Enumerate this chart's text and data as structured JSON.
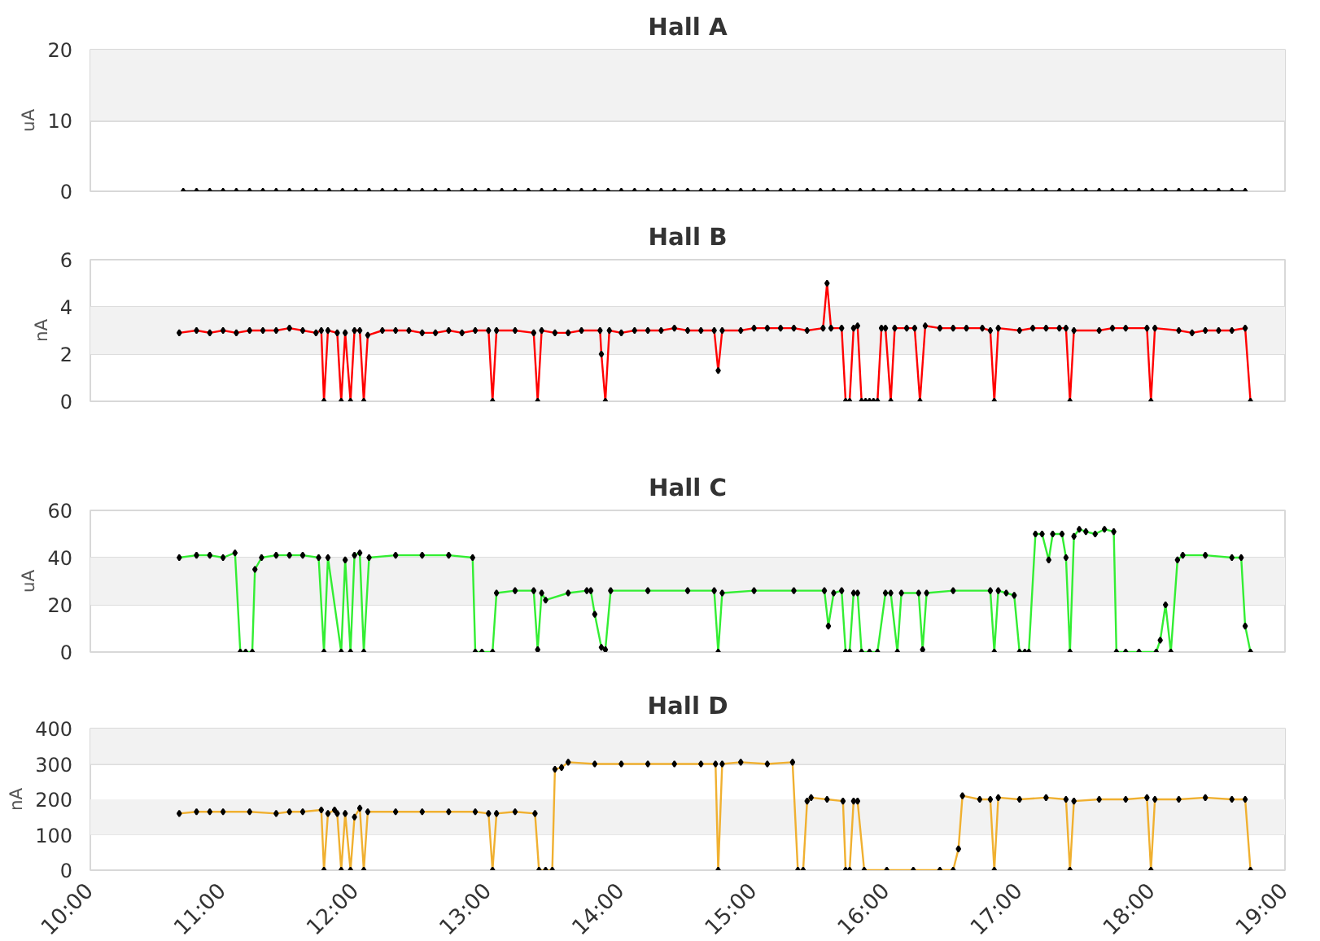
{
  "chart_data": [
    {
      "type": "line",
      "title": "Hall A",
      "ylabel": "uA",
      "xlim": [
        10,
        19
      ],
      "ylim": [
        0,
        20
      ],
      "yticks": [
        0,
        10,
        20
      ],
      "grid": "y",
      "tick_labels": "y",
      "marker": "diamond",
      "bands": [
        {
          "axis": "y",
          "from": 10,
          "to": 20,
          "color": "#f2f2f2"
        }
      ],
      "series": [
        {
          "color": "#000000",
          "x": [
            10.7,
            10.8,
            10.9,
            11.0,
            11.1,
            11.2,
            11.3,
            11.4,
            11.5,
            11.6,
            11.7,
            11.8,
            11.9,
            12.0,
            12.1,
            12.2,
            12.3,
            12.4,
            12.5,
            12.6,
            12.7,
            12.8,
            12.9,
            13.0,
            13.1,
            13.2,
            13.3,
            13.4,
            13.5,
            13.6,
            13.7,
            13.8,
            13.9,
            14.0,
            14.1,
            14.2,
            14.3,
            14.4,
            14.5,
            14.6,
            14.7,
            14.8,
            14.9,
            15.0,
            15.1,
            15.2,
            15.3,
            15.4,
            15.5,
            15.6,
            15.7,
            15.8,
            15.9,
            16.0,
            16.1,
            16.2,
            16.3,
            16.4,
            16.5,
            16.6,
            16.7,
            16.8,
            16.9,
            17.0,
            17.1,
            17.2,
            17.3,
            17.4,
            17.5,
            17.6,
            17.7,
            17.8,
            17.9,
            18.0,
            18.1,
            18.2,
            18.3,
            18.4,
            18.5,
            18.6,
            18.7
          ],
          "values": [
            0,
            0,
            0,
            0,
            0,
            0,
            0,
            0,
            0,
            0,
            0,
            0,
            0,
            0,
            0,
            0,
            0,
            0,
            0,
            0,
            0,
            0,
            0,
            0,
            0,
            0,
            0,
            0,
            0,
            0,
            0,
            0,
            0,
            0,
            0,
            0,
            0,
            0,
            0,
            0,
            0,
            0,
            0,
            0,
            0,
            0,
            0,
            0,
            0,
            0,
            0,
            0,
            0,
            0,
            0,
            0,
            0,
            0,
            0,
            0,
            0,
            0,
            0,
            0,
            0,
            0,
            0,
            0,
            0,
            0,
            0,
            0,
            0,
            0,
            0,
            0,
            0,
            0,
            0,
            0,
            0
          ]
        }
      ]
    },
    {
      "type": "line",
      "title": "Hall B",
      "ylabel": "nA",
      "xlim": [
        10,
        19
      ],
      "ylim": [
        0,
        6
      ],
      "yticks": [
        0,
        2,
        4,
        6
      ],
      "grid": "y",
      "tick_labels": "y",
      "marker": "diamond",
      "bands": [
        {
          "axis": "y",
          "from": 2,
          "to": 4,
          "color": "#f2f2f2"
        }
      ],
      "series": [
        {
          "color": "#ff0000",
          "x": [
            10.67,
            10.8,
            10.9,
            11.0,
            11.1,
            11.2,
            11.3,
            11.4,
            11.5,
            11.6,
            11.7,
            11.74,
            11.76,
            11.79,
            11.86,
            11.89,
            11.92,
            11.96,
            11.99,
            12.03,
            12.06,
            12.09,
            12.2,
            12.3,
            12.4,
            12.5,
            12.6,
            12.7,
            12.8,
            12.9,
            13.0,
            13.03,
            13.06,
            13.2,
            13.34,
            13.37,
            13.4,
            13.5,
            13.6,
            13.7,
            13.84,
            13.85,
            13.88,
            13.91,
            14.0,
            14.1,
            14.2,
            14.3,
            14.4,
            14.5,
            14.6,
            14.7,
            14.73,
            14.76,
            14.9,
            15.0,
            15.1,
            15.2,
            15.3,
            15.4,
            15.52,
            15.55,
            15.58,
            15.66,
            15.69,
            15.72,
            15.75,
            15.78,
            15.81,
            15.84,
            15.87,
            15.9,
            15.93,
            15.96,
            15.99,
            16.03,
            16.06,
            16.15,
            16.21,
            16.25,
            16.29,
            16.4,
            16.5,
            16.6,
            16.72,
            16.78,
            16.81,
            16.84,
            17.0,
            17.1,
            17.2,
            17.3,
            17.35,
            17.38,
            17.41,
            17.6,
            17.7,
            17.8,
            17.96,
            17.99,
            18.02,
            18.2,
            18.3,
            18.4,
            18.5,
            18.6,
            18.7,
            18.74
          ],
          "values": [
            2.9,
            3.0,
            2.9,
            3.0,
            2.9,
            3.0,
            3.0,
            3.0,
            3.1,
            3.0,
            2.9,
            3.0,
            0,
            3.0,
            2.9,
            0,
            2.9,
            0,
            3.0,
            3.0,
            0,
            2.8,
            3.0,
            3.0,
            3.0,
            2.9,
            2.9,
            3.0,
            2.9,
            3.0,
            3.0,
            0,
            3.0,
            3.0,
            2.9,
            0,
            3.0,
            2.9,
            2.9,
            3.0,
            3.0,
            2.0,
            0,
            3.0,
            2.9,
            3.0,
            3.0,
            3.0,
            3.1,
            3.0,
            3.0,
            3.0,
            1.3,
            3.0,
            3.0,
            3.1,
            3.1,
            3.1,
            3.1,
            3.0,
            3.1,
            5.0,
            3.1,
            3.1,
            0,
            0,
            3.1,
            3.2,
            0,
            0,
            0,
            0,
            0,
            3.1,
            3.1,
            0,
            3.1,
            3.1,
            3.1,
            0,
            3.2,
            3.1,
            3.1,
            3.1,
            3.1,
            3.0,
            0,
            3.1,
            3.0,
            3.1,
            3.1,
            3.1,
            3.1,
            0,
            3.0,
            3.0,
            3.1,
            3.1,
            3.1,
            0,
            3.1,
            3.0,
            2.9,
            3.0,
            3.0,
            3.0,
            3.1,
            0
          ]
        }
      ]
    },
    {
      "type": "line",
      "title": "Hall C",
      "ylabel": "uA",
      "xlim": [
        10,
        19
      ],
      "ylim": [
        0,
        60
      ],
      "yticks": [
        0,
        20,
        40,
        60
      ],
      "grid": "y",
      "tick_labels": "y",
      "marker": "diamond",
      "bands": [
        {
          "axis": "y",
          "from": 20,
          "to": 40,
          "color": "#f2f2f2"
        }
      ],
      "series": [
        {
          "color": "#33ee33",
          "x": [
            10.67,
            10.8,
            10.9,
            11.0,
            11.09,
            11.13,
            11.17,
            11.22,
            11.24,
            11.29,
            11.4,
            11.5,
            11.6,
            11.72,
            11.76,
            11.79,
            11.89,
            11.92,
            11.96,
            11.99,
            12.03,
            12.06,
            12.1,
            12.3,
            12.5,
            12.7,
            12.88,
            12.9,
            12.95,
            13.03,
            13.06,
            13.2,
            13.34,
            13.37,
            13.4,
            13.43,
            13.6,
            13.74,
            13.77,
            13.8,
            13.85,
            13.88,
            13.92,
            14.2,
            14.5,
            14.7,
            14.73,
            14.76,
            15.0,
            15.3,
            15.53,
            15.56,
            15.6,
            15.66,
            15.69,
            15.72,
            15.75,
            15.78,
            15.81,
            15.87,
            15.93,
            15.99,
            16.03,
            16.08,
            16.11,
            16.24,
            16.27,
            16.3,
            16.5,
            16.78,
            16.81,
            16.84,
            16.9,
            16.96,
            17.0,
            17.04,
            17.07,
            17.12,
            17.17,
            17.22,
            17.25,
            17.32,
            17.35,
            17.38,
            17.41,
            17.45,
            17.5,
            17.57,
            17.64,
            17.71,
            17.73,
            17.8,
            17.9,
            18.03,
            18.06,
            18.1,
            18.14,
            18.19,
            18.23,
            18.4,
            18.6,
            18.67,
            18.7,
            18.74
          ],
          "values": [
            40,
            41,
            41,
            40,
            42,
            0,
            0,
            0,
            35,
            40,
            41,
            41,
            41,
            40,
            0,
            40,
            0,
            39,
            0,
            41,
            42,
            0,
            40,
            41,
            41,
            41,
            40,
            0,
            0,
            0,
            25,
            26,
            26,
            1,
            25,
            22,
            25,
            26,
            26,
            16,
            2,
            1,
            26,
            26,
            26,
            26,
            0,
            25,
            26,
            26,
            26,
            11,
            25,
            26,
            0,
            0,
            25,
            25,
            0,
            0,
            0,
            25,
            25,
            0,
            25,
            25,
            1,
            25,
            26,
            26,
            0,
            26,
            25,
            24,
            0,
            0,
            0,
            50,
            50,
            39,
            50,
            50,
            40,
            0,
            49,
            52,
            51,
            50,
            52,
            51,
            0,
            0,
            0,
            0,
            5,
            20,
            0,
            39,
            41,
            41,
            40,
            40,
            11,
            0
          ]
        }
      ]
    },
    {
      "type": "line",
      "title": "Hall D",
      "ylabel": "nA",
      "xlim": [
        10,
        19
      ],
      "xticks": [
        {
          "value": 10,
          "label": "10:00"
        },
        {
          "value": 11,
          "label": "11:00"
        },
        {
          "value": 12,
          "label": "12:00"
        },
        {
          "value": 13,
          "label": "13:00"
        },
        {
          "value": 14,
          "label": "14:00"
        },
        {
          "value": 15,
          "label": "15:00"
        },
        {
          "value": 16,
          "label": "16:00"
        },
        {
          "value": 17,
          "label": "17:00"
        },
        {
          "value": 18,
          "label": "18:00"
        },
        {
          "value": 19,
          "label": "19:00"
        }
      ],
      "ylim": [
        0,
        400
      ],
      "yticks": [
        0,
        100,
        200,
        300,
        400
      ],
      "grid": "y",
      "marker": "diamond",
      "bands": [
        {
          "axis": "y",
          "from": 100,
          "to": 200,
          "color": "#f2f2f2"
        },
        {
          "axis": "y",
          "from": 300,
          "to": 400,
          "color": "#f2f2f2"
        }
      ],
      "series": [
        {
          "color": "#f0b030",
          "x": [
            10.67,
            10.8,
            10.9,
            11.0,
            11.2,
            11.4,
            11.5,
            11.6,
            11.74,
            11.76,
            11.79,
            11.84,
            11.86,
            11.89,
            11.92,
            11.96,
            11.99,
            12.03,
            12.06,
            12.09,
            12.3,
            12.5,
            12.7,
            12.9,
            13.0,
            13.03,
            13.06,
            13.2,
            13.35,
            13.38,
            13.43,
            13.48,
            13.5,
            13.55,
            13.6,
            13.8,
            14.0,
            14.2,
            14.4,
            14.6,
            14.71,
            14.73,
            14.76,
            14.9,
            15.1,
            15.29,
            15.33,
            15.37,
            15.4,
            15.43,
            15.55,
            15.67,
            15.69,
            15.72,
            15.75,
            15.78,
            15.83,
            16.0,
            16.2,
            16.4,
            16.5,
            16.54,
            16.57,
            16.7,
            16.78,
            16.81,
            16.84,
            17.0,
            17.2,
            17.35,
            17.38,
            17.41,
            17.6,
            17.8,
            17.96,
            17.99,
            18.02,
            18.2,
            18.4,
            18.6,
            18.7,
            18.74
          ],
          "values": [
            160,
            165,
            165,
            165,
            165,
            160,
            165,
            165,
            170,
            0,
            160,
            170,
            160,
            0,
            160,
            0,
            150,
            175,
            0,
            165,
            165,
            165,
            165,
            165,
            160,
            0,
            160,
            165,
            160,
            0,
            0,
            0,
            285,
            290,
            305,
            300,
            300,
            300,
            300,
            300,
            300,
            0,
            300,
            305,
            300,
            305,
            0,
            0,
            195,
            205,
            200,
            195,
            0,
            0,
            195,
            195,
            0,
            0,
            0,
            0,
            0,
            60,
            210,
            200,
            200,
            0,
            205,
            200,
            205,
            200,
            0,
            195,
            200,
            200,
            205,
            0,
            200,
            200,
            205,
            200,
            200,
            0
          ]
        }
      ]
    }
  ]
}
